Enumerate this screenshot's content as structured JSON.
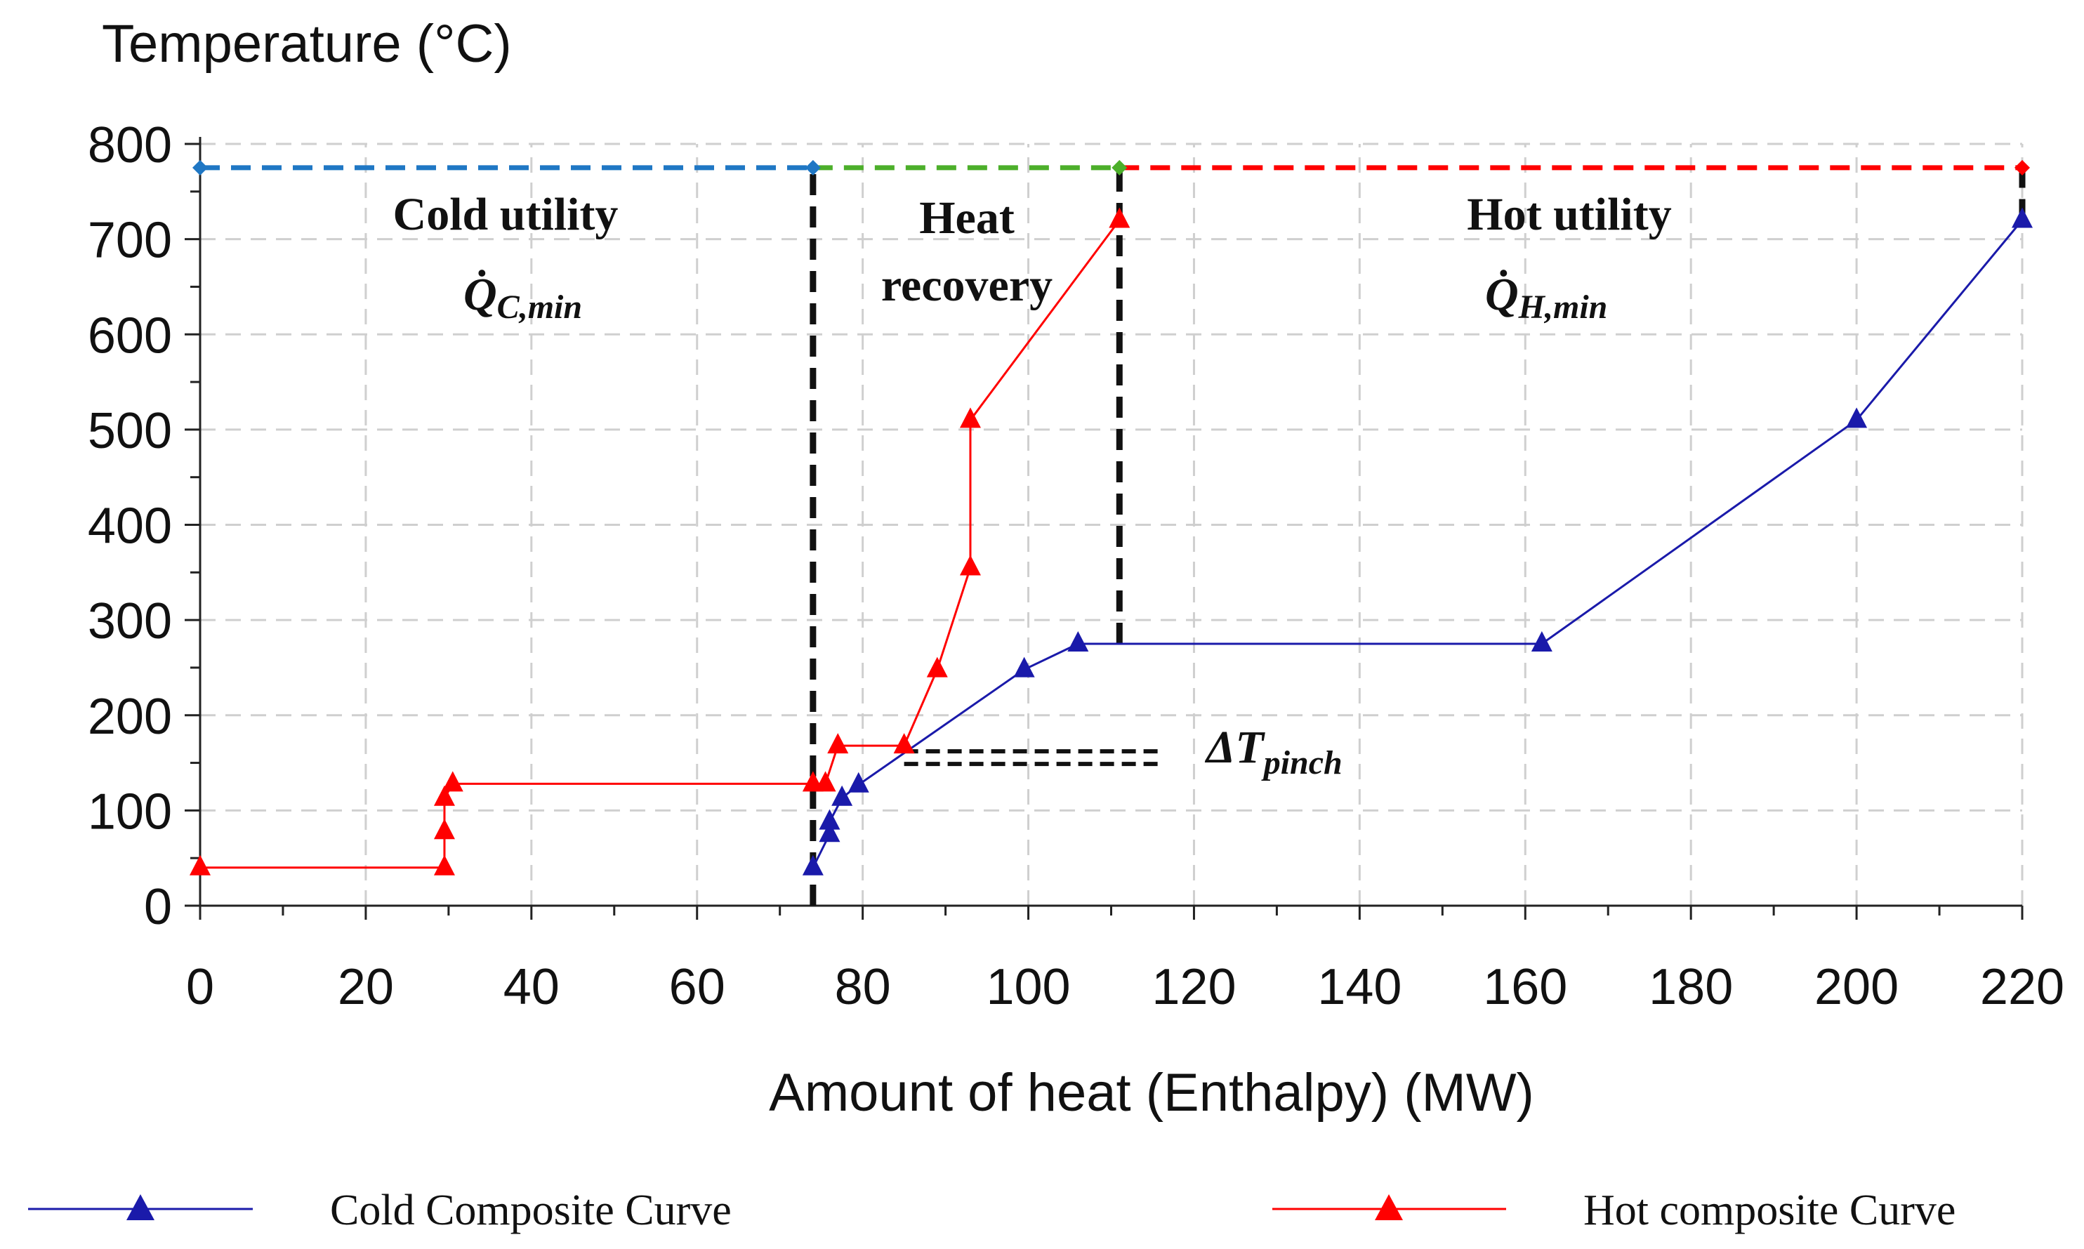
{
  "chart_data": {
    "type": "line",
    "title": "",
    "xlabel": "Amount of heat (Enthalpy) (MW)",
    "ylabel": "Temperature (°C)",
    "xlim": [
      0,
      220
    ],
    "ylim": [
      0,
      800
    ],
    "xticks": [
      "0",
      "20",
      "40",
      "60",
      "80",
      "100",
      "120",
      "140",
      "160",
      "180",
      "200",
      "220"
    ],
    "yticks": [
      "0",
      "100",
      "200",
      "300",
      "400",
      "500",
      "600",
      "700",
      "800"
    ],
    "grid": true,
    "legend_position": "bottom",
    "series": [
      {
        "name": "Cold Composite Curve",
        "color": "#1a1aaa",
        "x": [
          74,
          76,
          76,
          77.5,
          79.5,
          99.5,
          106,
          162,
          200,
          220
        ],
        "y": [
          40,
          75,
          88,
          113,
          127,
          248,
          275,
          275,
          510,
          720
        ]
      },
      {
        "name": "Hot composite Curve",
        "color": "#ff0000",
        "x": [
          0,
          29.5,
          29.5,
          29.5,
          30.5,
          74,
          75.5,
          77,
          85,
          89,
          93,
          93,
          111
        ],
        "y": [
          40,
          40,
          78,
          113,
          128,
          128,
          128,
          168,
          168,
          248,
          355,
          510,
          720
        ]
      }
    ],
    "annotations": {
      "cold_utility": {
        "line1": "Cold utility",
        "symbol": "Q̇",
        "subscript": "C,min",
        "x_range": [
          0,
          74
        ],
        "y": 775,
        "color": "#1f77c4"
      },
      "heat_recovery": {
        "line1": "Heat",
        "line2": "recovery",
        "x_range": [
          74,
          111
        ],
        "y": 775,
        "color": "#4caf2a"
      },
      "hot_utility": {
        "line1": "Hot utility",
        "symbol": "Q̇",
        "subscript": "H,min",
        "x_range": [
          111,
          220
        ],
        "y": 775,
        "color": "#ff0000"
      },
      "pinch": {
        "symbol": "ΔT",
        "subscript": "pinch",
        "x_range": [
          85,
          116
        ],
        "y": 168
      },
      "verticals": [
        {
          "x": 74,
          "y_range": [
            0,
            775
          ]
        },
        {
          "x": 111,
          "y_range": [
            275,
            775
          ]
        },
        {
          "x": 220,
          "y_range": [
            720,
            775
          ]
        }
      ]
    }
  }
}
